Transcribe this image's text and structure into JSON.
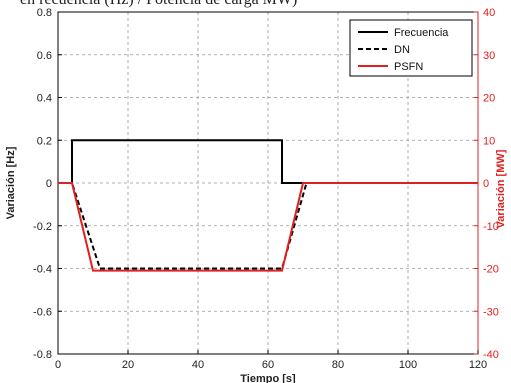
{
  "caption_fragment": "en recuencia (Hz) / Potencia de carga MW)",
  "chart_data": {
    "type": "line",
    "title": "",
    "xlabel": "Tiempo [s]",
    "ylabel": "Variación [Hz]",
    "ylabel_right": "Variación [MW]",
    "xlim": [
      0,
      120
    ],
    "ylim": [
      -0.8,
      0.8
    ],
    "ylim_right": [
      -40,
      40
    ],
    "x_ticks": [
      "0",
      "20",
      "40",
      "60",
      "80",
      "100",
      "120"
    ],
    "y_ticks": [
      "0.8",
      "0.6",
      "0.4",
      "0.2",
      "0",
      "-0.2",
      "-0.4",
      "-0.6",
      "-0.8"
    ],
    "y_ticks_right": [
      "40",
      "30",
      "20",
      "10",
      "0",
      "-10",
      "-20",
      "-30",
      "-40"
    ],
    "grid": true,
    "legend_position": "top-right",
    "series": [
      {
        "name": "Frecuencia",
        "axis": "left",
        "color": "#000000",
        "dash": "solid",
        "x": [
          0,
          4,
          4,
          64,
          64,
          70,
          120
        ],
        "y": [
          0,
          0,
          0.2,
          0.2,
          0,
          0,
          0
        ]
      },
      {
        "name": "DN",
        "axis": "right",
        "color": "#000000",
        "dash": "dashed",
        "x": [
          0,
          4,
          12,
          64,
          71,
          120
        ],
        "y": [
          0,
          0,
          -20,
          -20,
          0,
          0
        ]
      },
      {
        "name": "PSFN",
        "axis": "right",
        "color": "#e02020",
        "dash": "solid",
        "x": [
          0,
          4,
          10,
          64,
          70,
          120
        ],
        "y": [
          0,
          0,
          -20.5,
          -20.5,
          0,
          0
        ]
      }
    ]
  }
}
